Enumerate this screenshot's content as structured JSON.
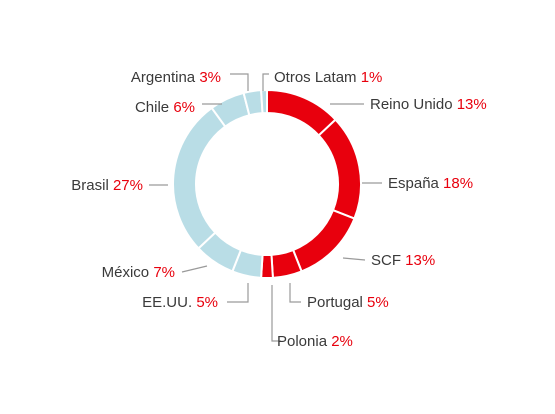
{
  "chart_data": {
    "type": "pie",
    "title": "",
    "slices": [
      {
        "label": "Reino Unido",
        "value": 13,
        "value_label": "13%",
        "color": "#e8000d"
      },
      {
        "label": "España",
        "value": 18,
        "value_label": "18%",
        "color": "#e8000d"
      },
      {
        "label": "SCF",
        "value": 13,
        "value_label": "13%",
        "color": "#e8000d"
      },
      {
        "label": "Portugal",
        "value": 5,
        "value_label": "5%",
        "color": "#e8000d"
      },
      {
        "label": "Polonia",
        "value": 2,
        "value_label": "2%",
        "color": "#e8000d"
      },
      {
        "label": "EE.UU.",
        "value": 5,
        "value_label": "5%",
        "color": "#b9dde6"
      },
      {
        "label": "México",
        "value": 7,
        "value_label": "7%",
        "color": "#b9dde6"
      },
      {
        "label": "Brasil",
        "value": 27,
        "value_label": "27%",
        "color": "#b9dde6"
      },
      {
        "label": "Chile",
        "value": 6,
        "value_label": "6%",
        "color": "#b9dde6"
      },
      {
        "label": "Argentina",
        "value": 3,
        "value_label": "3%",
        "color": "#b9dde6"
      },
      {
        "label": "Otros Latam",
        "value": 1,
        "value_label": "1%",
        "color": "#b9dde6"
      }
    ],
    "style": "donut",
    "value_color": "#e8000d",
    "leader_color": "#9a9a9a"
  }
}
